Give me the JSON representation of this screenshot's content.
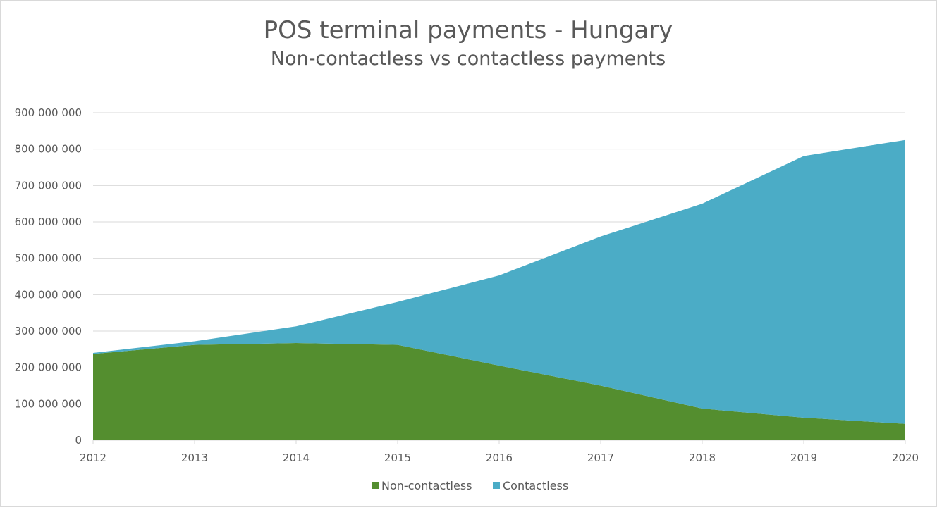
{
  "chart_data": {
    "type": "area",
    "stacked": true,
    "title": "POS terminal payments - Hungary",
    "subtitle": "Non-contactless vs contactless payments",
    "xlabel": "",
    "ylabel": "",
    "categories": [
      "2012",
      "2013",
      "2014",
      "2015",
      "2016",
      "2017",
      "2018",
      "2019",
      "2020"
    ],
    "ylim": [
      0,
      900000000
    ],
    "yticks": [
      0,
      100000000,
      200000000,
      300000000,
      400000000,
      500000000,
      600000000,
      700000000,
      800000000,
      900000000
    ],
    "ytick_labels": [
      "0",
      "100 000 000",
      "200 000 000",
      "300 000 000",
      "400 000 000",
      "500 000 000",
      "600 000 000",
      "700 000 000",
      "800 000 000",
      "900 000 000"
    ],
    "grid": true,
    "legend_position": "bottom",
    "series": [
      {
        "name": "Non-contactless",
        "color": "#548e2f",
        "values": [
          237000000,
          262000000,
          267000000,
          262000000,
          205000000,
          150000000,
          87000000,
          62000000,
          45000000
        ]
      },
      {
        "name": "Contactless",
        "color": "#4bacc6",
        "values": [
          3000000,
          10000000,
          46000000,
          118000000,
          248000000,
          410000000,
          563000000,
          719000000,
          780000000
        ]
      }
    ]
  }
}
